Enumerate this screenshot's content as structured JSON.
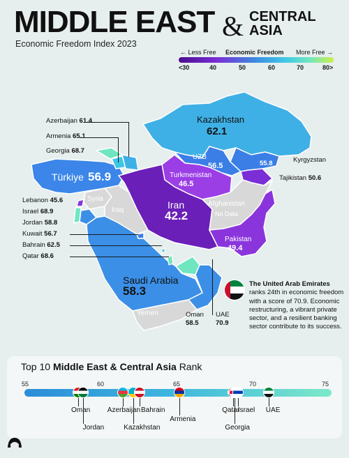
{
  "header": {
    "title_main": "MIDDLE EAST",
    "title_amp": "&",
    "title_side_line1": "CENTRAL",
    "title_side_line2": "ASIA",
    "subtitle": "Economic Freedom Index 2023"
  },
  "legend": {
    "less_free": "← Less Free",
    "title": "Economic Freedom",
    "more_free": "More Free →",
    "ticks": [
      "<30",
      "40",
      "50",
      "60",
      "70",
      "80>"
    ],
    "colors": [
      "#4a0e8f",
      "#7a2ed6",
      "#3b8de0",
      "#3fc6e6",
      "#6fe6c0",
      "#c9f04a"
    ]
  },
  "map": {
    "countries": [
      {
        "name": "Kazakhstan",
        "value": "62.1",
        "color": "#3fb0e6"
      },
      {
        "name": "Türkiye",
        "value": "56.9",
        "color": "#3b86e8"
      },
      {
        "name": "Iran",
        "value": "42.2",
        "color": "#6a1fb8"
      },
      {
        "name": "Saudi Arabia",
        "value": "58.3",
        "color": "#3b8fe6"
      },
      {
        "name": "Turkmenistan",
        "value": "46.5",
        "color": "#9b3ee6"
      },
      {
        "name": "UZB",
        "value": "56.5",
        "color": "#3b7ee6"
      },
      {
        "name": "Pakistan",
        "value": "49.4",
        "color": "#8a35dc"
      },
      {
        "name": "Afghanistan",
        "value": "No Data",
        "color": "#d8d8d8"
      },
      {
        "name": "Syria",
        "value": "",
        "color": "#d8d8d8"
      },
      {
        "name": "Iraq",
        "value": "",
        "color": "#d8d8d8"
      },
      {
        "name": "Yemen",
        "value": "",
        "color": "#d8d8d8"
      },
      {
        "name": "Oman",
        "value": "58.5",
        "color": "#3b8fe6"
      },
      {
        "name": "UAE",
        "value": "70.9",
        "color": "#6fe6c0"
      }
    ],
    "side_labels": [
      {
        "name": "Azerbaijan",
        "value": "61.4"
      },
      {
        "name": "Armenia",
        "value": "65.1"
      },
      {
        "name": "Georgia",
        "value": "68.7"
      },
      {
        "name": "Kyrgyzstan",
        "value": ""
      },
      {
        "name": "Tajikistan",
        "value": "50.6"
      },
      {
        "name": "Lebanon",
        "value": "45.6"
      },
      {
        "name": "Israel",
        "value": "68.9"
      },
      {
        "name": "Jordan",
        "value": "58.8"
      },
      {
        "name": "Kuwait",
        "value": "56.7"
      },
      {
        "name": "Bahrain",
        "value": "62.5"
      },
      {
        "name": "Qatar",
        "value": "68.6"
      }
    ],
    "kyrgyz_value": "55.8",
    "no_data": "No Data"
  },
  "callout": {
    "title": "The United Arab Emirates",
    "body": "ranks 24th in economic freedom with a score of 70.9. Economic restructuring, a vibrant private sector, and a resilient banking sector contribute to its success."
  },
  "rank": {
    "title_prefix": "Top 10",
    "title_bold": "Middle East & Central Asia",
    "title_suffix": "Rank",
    "ticks": [
      "55",
      "60",
      "65",
      "70",
      "75"
    ],
    "range": [
      55,
      75
    ],
    "items": [
      {
        "name": "Oman",
        "score": 58.5
      },
      {
        "name": "Jordan",
        "score": 58.8
      },
      {
        "name": "Azerbaijan",
        "score": 61.4
      },
      {
        "name": "Kazakhstan",
        "score": 62.1
      },
      {
        "name": "Bahrain",
        "score": 62.5
      },
      {
        "name": "Armenia",
        "score": 65.1
      },
      {
        "name": "Qatar",
        "score": 68.6
      },
      {
        "name": "Georgia",
        "score": 68.7
      },
      {
        "name": "Israel",
        "score": 68.9
      },
      {
        "name": "UAE",
        "score": 70.9
      }
    ]
  }
}
